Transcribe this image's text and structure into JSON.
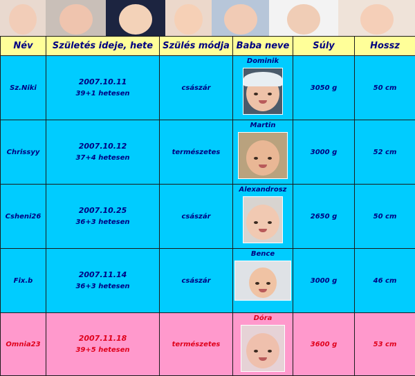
{
  "strip_photos": [
    {
      "name": "strip-photo-sleeping-baby",
      "bg": "#e9d9cf",
      "face": "#f2cdb8"
    },
    {
      "name": "strip-photo-blue-eyed-baby",
      "bg": "#c9bfb8",
      "face": "#efc4ae"
    },
    {
      "name": "strip-photo-sitting-baby",
      "bg": "#1c2440",
      "face": "#f3d2b8"
    },
    {
      "name": "strip-photo-smiling-baby",
      "bg": "#ecd8cb",
      "face": "#f6d0b6"
    },
    {
      "name": "strip-photo-napping-baby",
      "bg": "#b7c6d9",
      "face": "#f1cbb5"
    },
    {
      "name": "strip-photo-towel-baby",
      "bg": "#f3f3f3",
      "face": "#f0cdb6"
    },
    {
      "name": "strip-photo-portrait-baby",
      "bg": "#efe3d9",
      "face": "#f5cfb8"
    }
  ],
  "headers": {
    "name": "Név",
    "birth": "Születés ideje, hete",
    "method": "Szülés módja",
    "baby": "Baba neve",
    "weight": "Súly",
    "length": "Hossz"
  },
  "rows": [
    {
      "user": "Sz.Niki",
      "date": "2007.10.11",
      "week": "39+1 hetesen",
      "method": "császár",
      "baby": "Dominik",
      "weight": "3050 g",
      "length": "50 cm",
      "style": "blue",
      "photo": {
        "w": 56,
        "h": 66,
        "bg": "#4a5a6a",
        "skin": "#eec2a8",
        "cap": "#e8eef2"
      }
    },
    {
      "user": "Chrissyy",
      "date": "2007.10.12",
      "week": "37+4 hetesen",
      "method": "természetes",
      "baby": "Martin",
      "weight": "3000 g",
      "length": "52 cm",
      "style": "blue",
      "photo": {
        "w": 70,
        "h": 66,
        "bg": "#b9a27e",
        "skin": "#e9b795",
        "cap": ""
      }
    },
    {
      "user": "Csheni26",
      "date": "2007.10.25",
      "week": "36+3 hetesen",
      "method": "császár",
      "baby": "Alexandrosz",
      "weight": "2650 g",
      "length": "50 cm",
      "style": "blue",
      "photo": {
        "w": 56,
        "h": 66,
        "bg": "#d8d4d0",
        "skin": "#f1c9b2",
        "cap": ""
      }
    },
    {
      "user": "Fix.b",
      "date": "2007.11.14",
      "week": "36+3 hetesen",
      "method": "császár",
      "baby": "Bence",
      "weight": "3000 g",
      "length": "46 cm",
      "style": "blue",
      "photo": {
        "w": 80,
        "h": 56,
        "bg": "#dfe2e6",
        "skin": "#f0c3a4",
        "cap": ""
      }
    },
    {
      "user": "Omnia23",
      "date": "2007.11.18",
      "week": "39+5 hetesen",
      "method": "természetes",
      "baby": "Dóra",
      "weight": "3600 g",
      "length": "53 cm",
      "style": "pink",
      "photo": {
        "w": 62,
        "h": 66,
        "bg": "#e6d2d6",
        "skin": "#efc0ad",
        "cap": ""
      }
    }
  ]
}
